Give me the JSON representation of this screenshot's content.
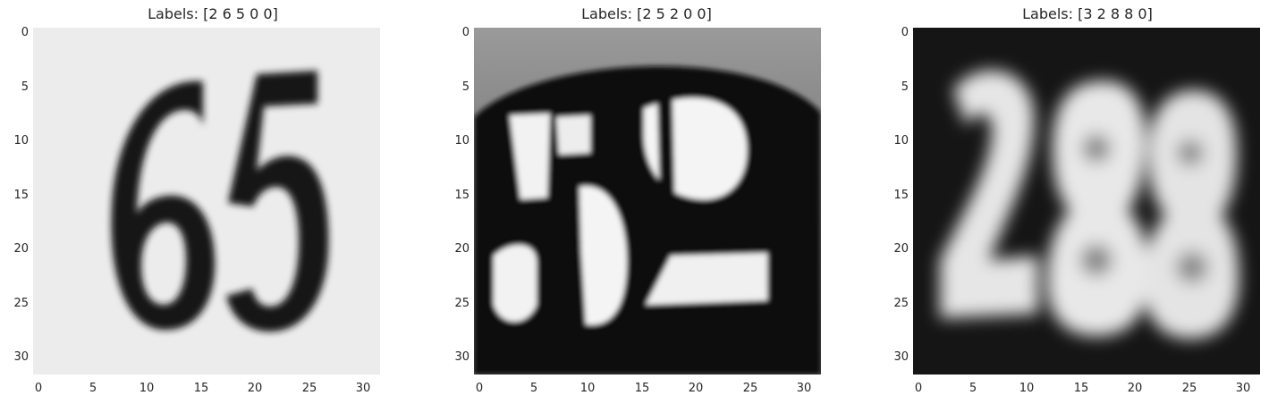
{
  "panels": [
    {
      "title": "Labels: [2 6 5 0 0]",
      "digits_shown": "65",
      "yticks": [
        "0",
        "5",
        "10",
        "15",
        "20",
        "25",
        "30"
      ],
      "xticks": [
        "0",
        "5",
        "10",
        "15",
        "20",
        "25",
        "30"
      ]
    },
    {
      "title": "Labels: [2 5 2 0 0]",
      "digits_shown": "52",
      "yticks": [
        "0",
        "5",
        "10",
        "15",
        "20",
        "25",
        "30"
      ],
      "xticks": [
        "0",
        "5",
        "10",
        "15",
        "20",
        "25",
        "30"
      ]
    },
    {
      "title": "Labels: [3 2 8 8 0]",
      "digits_shown": "288",
      "yticks": [
        "0",
        "5",
        "10",
        "15",
        "20",
        "25",
        "30"
      ],
      "xticks": [
        "0",
        "5",
        "10",
        "15",
        "20",
        "25",
        "30"
      ]
    }
  ],
  "colors": {
    "panel1_bg": "#ececec",
    "panel1_ink": "#141414",
    "panel2_bg": "#8a8a8a",
    "panel2_dark": "#0d0d0d",
    "panel2_light": "#f4f4f4",
    "panel3_bg": "#141414",
    "panel3_light": "#e8e8e8"
  }
}
